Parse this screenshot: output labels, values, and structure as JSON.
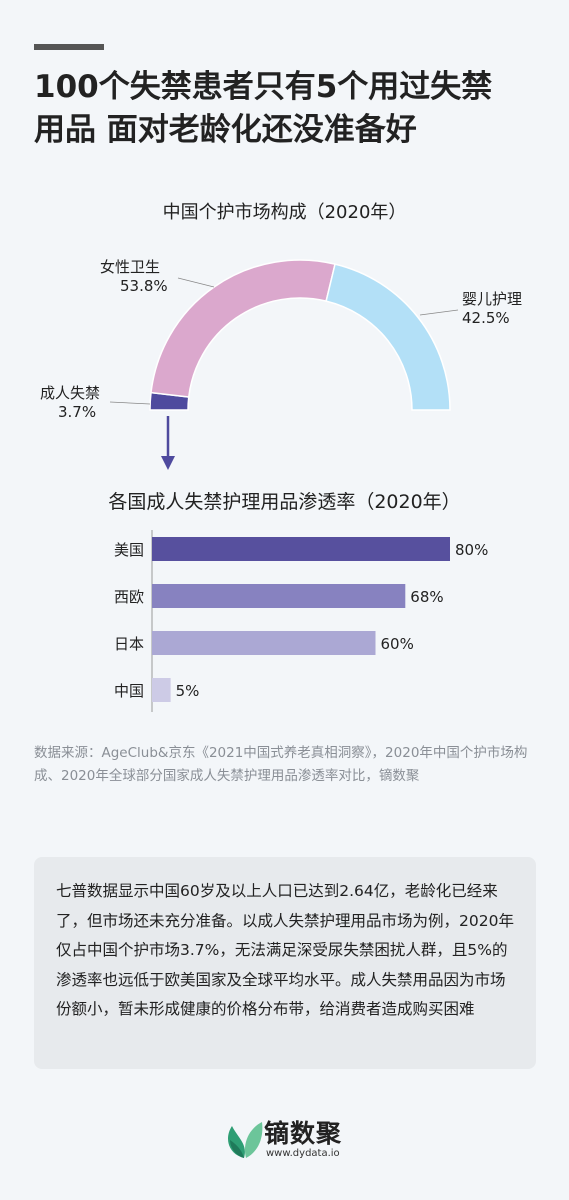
{
  "title_lines": [
    "100个失禁患者只有5个用过失禁",
    "用品  面对老龄化还没准备好"
  ],
  "colors": {
    "female_hygiene": "#dba8cd",
    "baby_care": "#b3e0f7",
    "adult_incontinence": "#4e4a9e",
    "bar_us": "#57509e",
    "bar_eu": "#8782c0",
    "bar_jp": "#aba8d4",
    "bar_cn": "#cdcbe6",
    "arrow": "#4e4a9e"
  },
  "chart_data": [
    {
      "type": "pie",
      "variant": "half-donut",
      "title": "中国个护市场构成（2020年）",
      "slices": [
        {
          "name": "成人失禁",
          "value": 3.7,
          "label": "3.7%"
        },
        {
          "name": "女性卫生",
          "value": 53.8,
          "label": "53.8%"
        },
        {
          "name": "婴儿护理",
          "value": 42.5,
          "label": "42.5%"
        }
      ]
    },
    {
      "type": "bar",
      "orientation": "horizontal",
      "title": "各国成人失禁护理用品渗透率（2020年）",
      "categories": [
        "美国",
        "西欧",
        "日本",
        "中国"
      ],
      "values": [
        80,
        68,
        60,
        5
      ],
      "value_labels": [
        "80%",
        "68%",
        "60%",
        "5%"
      ],
      "xlim": [
        0,
        80
      ]
    }
  ],
  "source": "数据来源：AgeClub&京东《2021中国式养老真相洞察》，2020年中国个护市场构成、2020年全球部分国家成人失禁护理用品渗透率对比，镝数聚",
  "summary": "七普数据显示中国60岁及以上人口已达到2.64亿，老龄化已经来了，但市场还未充分准备。以成人失禁护理用品市场为例，2020年仅占中国个护市场3.7%，无法满足深受尿失禁困扰人群，且5%的渗透率也远低于欧美国家及全球平均水平。成人失禁用品因为市场份额小，暂未形成健康的价格分布带，给消费者造成购买困难",
  "logo": {
    "name": "镝数聚",
    "url": "www.dydata.io"
  }
}
